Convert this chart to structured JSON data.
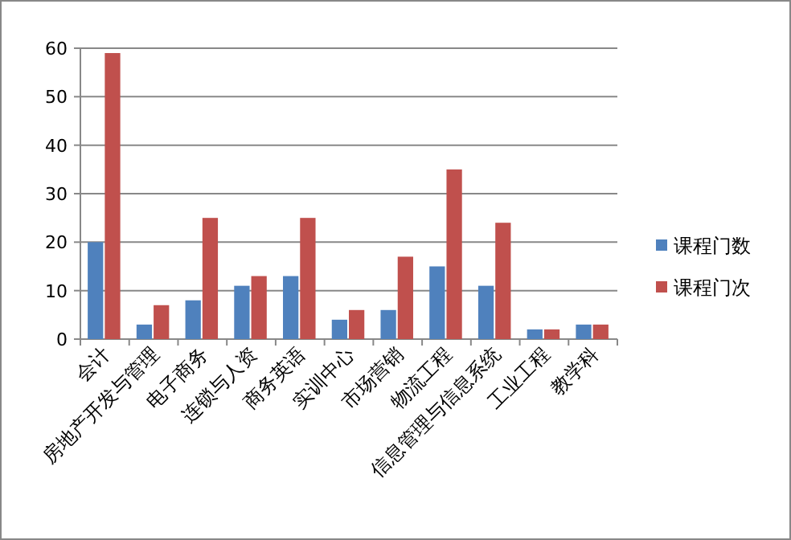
{
  "chart_data": {
    "type": "bar",
    "categories": [
      "会计",
      "房地产开发与管理",
      "电子商务",
      "连锁与人资",
      "商务英语",
      "实训中心",
      "市场营销",
      "物流工程",
      "信息管理与信息系统",
      "工业工程",
      "教学科"
    ],
    "series": [
      {
        "name": "课程门数",
        "color": "#4f81bd",
        "values": [
          20,
          3,
          8,
          11,
          13,
          4,
          6,
          15,
          11,
          2,
          3
        ]
      },
      {
        "name": "课程门次",
        "color": "#c0504d",
        "values": [
          59,
          7,
          25,
          13,
          25,
          6,
          17,
          35,
          24,
          2,
          3
        ]
      }
    ],
    "ylim": [
      0,
      60
    ],
    "yticks": [
      0,
      10,
      20,
      30,
      40,
      50,
      60
    ],
    "grid": "y",
    "legend": "right"
  }
}
